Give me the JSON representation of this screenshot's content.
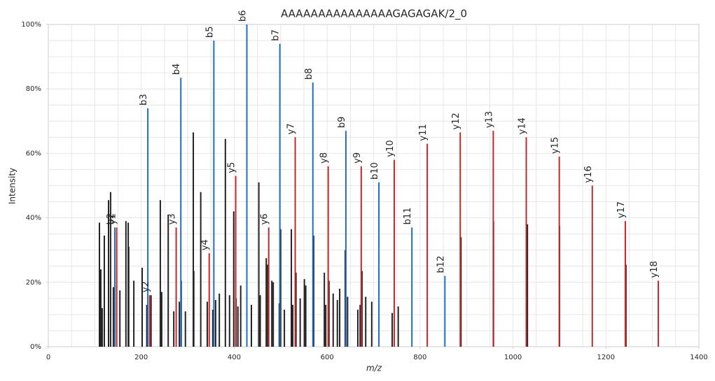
{
  "chart_data": {
    "type": "spectrum",
    "title": "AAAAAAAAAAAAAAAGAGAGAK/2_0",
    "x_label": "m/z",
    "y_label": "Intensity",
    "xlim": [
      0,
      1400
    ],
    "ylim": [
      0,
      100
    ],
    "xticks": [
      0,
      200,
      400,
      600,
      800,
      1000,
      1200,
      1400
    ],
    "yticks": [
      {
        "value": 0,
        "label": "0%"
      },
      {
        "value": 20,
        "label": "20%"
      },
      {
        "value": 40,
        "label": "40%"
      },
      {
        "value": 60,
        "label": "60%"
      },
      {
        "value": 80,
        "label": "80%"
      },
      {
        "value": 100,
        "label": "100%"
      }
    ],
    "xgrid": [
      50,
      100,
      150,
      200,
      250,
      300,
      350,
      400,
      450,
      500,
      550,
      600,
      650,
      700,
      750,
      800,
      850,
      900,
      950,
      1000,
      1050,
      1100,
      1150,
      1200,
      1250,
      1300,
      1350
    ],
    "ygrid": [
      5,
      10,
      15,
      20,
      25,
      30,
      35,
      40,
      45,
      50,
      55,
      60,
      65,
      70,
      75,
      80,
      85,
      90,
      95
    ],
    "grid": true,
    "peaks": {
      "color": "#222222",
      "x": [
        110,
        113,
        116,
        120.5,
        129.6,
        134,
        140,
        154,
        167,
        172,
        173,
        184,
        202,
        212,
        221,
        241,
        244,
        258,
        270,
        282,
        286,
        295,
        312,
        313,
        328,
        342,
        354,
        360,
        368,
        381,
        390,
        399,
        404,
        408,
        414,
        437,
        453,
        456,
        469,
        472,
        481,
        484,
        497,
        500,
        508,
        523,
        526,
        533,
        542,
        551,
        554,
        571,
        594,
        597,
        604,
        613,
        622,
        627,
        639,
        644,
        666,
        671,
        675,
        683,
        696,
        740,
        753,
        888,
        958,
        1031,
        1100,
        1243
      ],
      "values": [
        38.5,
        24,
        12,
        34.5,
        45.5,
        48,
        18.5,
        17.5,
        39,
        38.5,
        31,
        20.5,
        24.5,
        13,
        16,
        45.5,
        17,
        41,
        11,
        14,
        20.5,
        11,
        66.5,
        23.5,
        48,
        14,
        11.5,
        14.5,
        16.5,
        64.5,
        16,
        42,
        15,
        12.5,
        19,
        13,
        51,
        16,
        27.5,
        25.5,
        20.5,
        20,
        13.5,
        36.5,
        11.5,
        36.5,
        13,
        23,
        15,
        21,
        19,
        34.5,
        23,
        13,
        20.5,
        16.5,
        14.5,
        18,
        30,
        15.5,
        11.5,
        13,
        23.5,
        15.5,
        14,
        10.5,
        12.5,
        34,
        39,
        38,
        37.5,
        25.5
      ]
    },
    "b_ions": {
      "color": "#1f6fc0",
      "labels": [
        "b2",
        "b3",
        "b4",
        "b5",
        "b6",
        "b7",
        "b8",
        "b9",
        "b10",
        "b11",
        "b12"
      ],
      "x": [
        143.08,
        214.12,
        285.16,
        356.19,
        427.23,
        498.27,
        569.31,
        640.34,
        711.38,
        782.42,
        853.46
      ],
      "values": [
        37,
        74,
        83.5,
        95,
        100,
        94,
        82,
        67,
        51,
        37,
        22
      ]
    },
    "y_ions": {
      "color": "#c62828",
      "labels": [
        "y1",
        "y2",
        "y3",
        "y4",
        "y5",
        "y6",
        "y7",
        "y8",
        "y9",
        "y10",
        "y11",
        "y12",
        "y13",
        "y14",
        "y15",
        "y16",
        "y17",
        "y18"
      ],
      "x": [
        147.11,
        218.15,
        275.17,
        346.21,
        403.23,
        474.27,
        531.29,
        602.33,
        673.37,
        744.4,
        815.44,
        886.48,
        957.52,
        1028.55,
        1099.59,
        1170.63,
        1241.67,
        1312.7
      ],
      "values": [
        37,
        16,
        37,
        29,
        53,
        37,
        65,
        56,
        56,
        58,
        63,
        66.5,
        67,
        65,
        59,
        50,
        39,
        20.5
      ]
    }
  }
}
